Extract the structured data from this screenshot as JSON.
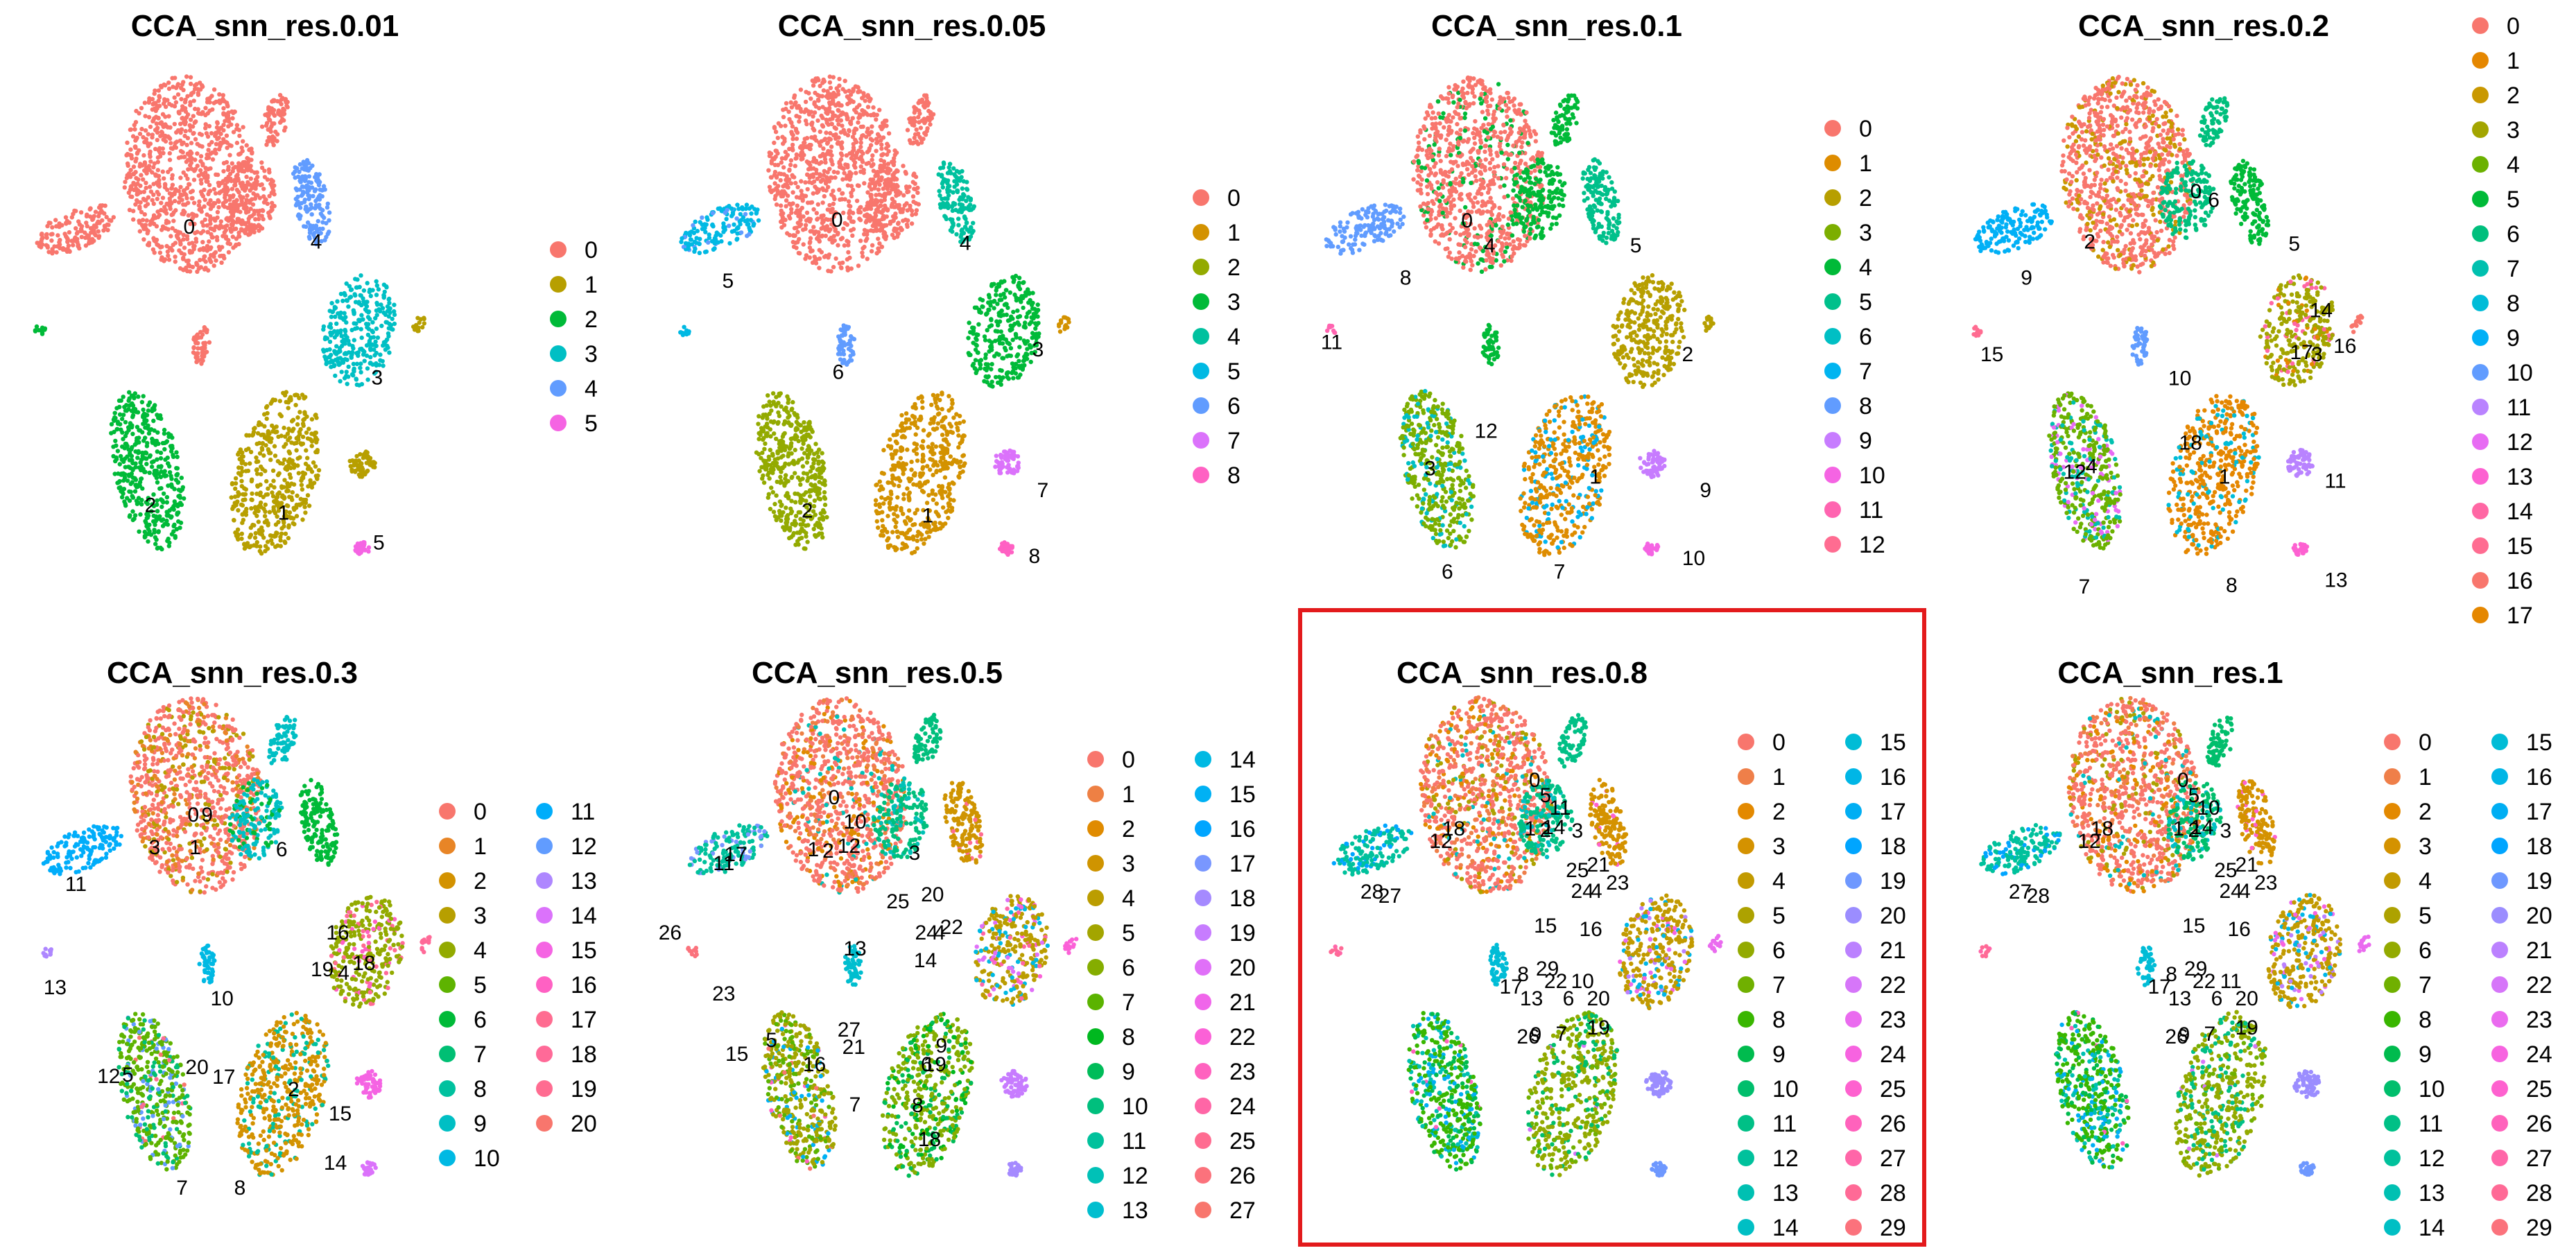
{
  "chart_data": [
    {
      "type": "scatter",
      "title": "CCA_snn_res.0.01",
      "legend_title": "",
      "legend_columns": 1,
      "clusters": [
        "0",
        "1",
        "2",
        "3",
        "4",
        "5"
      ],
      "colors": [
        "#F8766D",
        "#B79F00",
        "#00BA38",
        "#00BFC4",
        "#619CFF",
        "#F564E3"
      ]
    },
    {
      "type": "scatter",
      "title": "CCA_snn_res.0.05",
      "legend_title": "",
      "legend_columns": 1,
      "clusters": [
        "0",
        "1",
        "2",
        "3",
        "4",
        "5",
        "6",
        "7",
        "8"
      ],
      "colors": [
        "#F8766D",
        "#D39200",
        "#93AA00",
        "#00BA38",
        "#00C19F",
        "#00B9E3",
        "#619CFF",
        "#DB72FB",
        "#FF61C3"
      ]
    },
    {
      "type": "scatter",
      "title": "CCA_snn_res.0.1",
      "legend_title": "",
      "legend_columns": 1,
      "clusters": [
        "0",
        "1",
        "2",
        "3",
        "4",
        "5",
        "6",
        "7",
        "8",
        "9",
        "10",
        "11",
        "12"
      ],
      "colors": [
        "#F8766D",
        "#DE8C00",
        "#B79F00",
        "#7CAE00",
        "#00BA38",
        "#00C08B",
        "#00BFC4",
        "#00B4F0",
        "#619CFF",
        "#C77CFF",
        "#F564E3",
        "#FF64B0",
        "#FF6C91"
      ]
    },
    {
      "type": "scatter",
      "title": "CCA_snn_res.0.2",
      "legend_title": "",
      "legend_columns": 1,
      "clusters": [
        "0",
        "1",
        "2",
        "3",
        "4",
        "5",
        "6",
        "7",
        "8",
        "9",
        "10",
        "11",
        "12",
        "13",
        "14",
        "15",
        "16",
        "17"
      ],
      "colors": [
        "#F8766D",
        "#E58700",
        "#C99800",
        "#A3A500",
        "#6BB100",
        "#00BA38",
        "#00BF7D",
        "#00C0AF",
        "#00BCD8",
        "#00B0F6",
        "#619CFF",
        "#B983FF",
        "#E76BF3",
        "#FD61D1",
        "#FF67A4",
        "#FF6C91",
        "#F8766D",
        "#E58700"
      ]
    },
    {
      "type": "scatter",
      "title": "CCA_snn_res.0.3",
      "legend_title": "",
      "legend_columns": 2,
      "clusters": [
        "0",
        "1",
        "2",
        "3",
        "4",
        "5",
        "6",
        "7",
        "8",
        "9",
        "10",
        "11",
        "12",
        "13",
        "14",
        "15",
        "16",
        "17",
        "18",
        "19",
        "20"
      ],
      "colors": [
        "#F8766D",
        "#E88526",
        "#D39200",
        "#B79F00",
        "#93AA00",
        "#5EB300",
        "#00BA38",
        "#00BF74",
        "#00C19F",
        "#00BFC4",
        "#00B9E3",
        "#00ADFA",
        "#619CFF",
        "#AE87FF",
        "#DB72FB",
        "#F564E3",
        "#FF61C3",
        "#FF6C91",
        "#FF6A98",
        "#FF6C91",
        "#F8766D"
      ]
    },
    {
      "type": "scatter",
      "title": "CCA_snn_res.0.5",
      "legend_title": "",
      "legend_columns": 2,
      "clusters": [
        "0",
        "1",
        "2",
        "3",
        "4",
        "5",
        "6",
        "7",
        "8",
        "9",
        "10",
        "11",
        "12",
        "13",
        "14",
        "15",
        "16",
        "17",
        "18",
        "19",
        "20",
        "21",
        "22",
        "23",
        "24",
        "25",
        "26",
        "27"
      ],
      "colors": [
        "#F8766D",
        "#EE8044",
        "#E08B00",
        "#CF9400",
        "#BB9D00",
        "#A3A500",
        "#85AD00",
        "#5BB300",
        "#00B81F",
        "#00BC59",
        "#00BF7D",
        "#00C19C",
        "#00C1B7",
        "#00BECF",
        "#00B9E3",
        "#00B1F4",
        "#00A5FF",
        "#7997FF",
        "#A58AFF",
        "#C77CFF",
        "#E070F8",
        "#F066EA",
        "#FB61D7",
        "#FF62BF",
        "#FF66A6",
        "#FF6C91",
        "#FB727C",
        "#F8766D"
      ]
    },
    {
      "type": "scatter",
      "title": "CCA_snn_res.0.8",
      "legend_title": "",
      "legend_columns": 2,
      "highlighted": true,
      "clusters": [
        "0",
        "1",
        "2",
        "3",
        "4",
        "5",
        "6",
        "7",
        "8",
        "9",
        "10",
        "11",
        "12",
        "13",
        "14",
        "15",
        "16",
        "17",
        "18",
        "19",
        "20",
        "21",
        "22",
        "23",
        "24",
        "25",
        "26",
        "27",
        "28",
        "29"
      ],
      "colors": [
        "#F8766D",
        "#EF7F49",
        "#E38900",
        "#D49200",
        "#C29A00",
        "#ADA200",
        "#93AA00",
        "#70B000",
        "#39B600",
        "#00BB4E",
        "#00BE6C",
        "#00C086",
        "#00C19C",
        "#00C0B2",
        "#00BFC4",
        "#00BCD6",
        "#00B6E6",
        "#00AEF3",
        "#00A5FF",
        "#6E98FF",
        "#9B8DFF",
        "#BB81FF",
        "#D676F9",
        "#EA6BEF",
        "#F763E0",
        "#FE61CF",
        "#FF62BC",
        "#FF66A8",
        "#FF6A96",
        "#FB727C"
      ]
    },
    {
      "type": "scatter",
      "title": "CCA_snn_res.1",
      "legend_title": "",
      "legend_columns": 2,
      "clusters": [
        "0",
        "1",
        "2",
        "3",
        "4",
        "5",
        "6",
        "7",
        "8",
        "9",
        "10",
        "11",
        "12",
        "13",
        "14",
        "15",
        "16",
        "17",
        "18",
        "19",
        "20",
        "21",
        "22",
        "23",
        "24",
        "25",
        "26",
        "27",
        "28",
        "29"
      ],
      "colors": [
        "#F8766D",
        "#EF7F49",
        "#E38900",
        "#D49200",
        "#C29A00",
        "#ADA200",
        "#93AA00",
        "#70B000",
        "#39B600",
        "#00BB4E",
        "#00BE6C",
        "#00C086",
        "#00C19C",
        "#00C0B2",
        "#00BFC4",
        "#00BCD6",
        "#00B6E6",
        "#00AEF3",
        "#00A5FF",
        "#6E98FF",
        "#9B8DFF",
        "#BB81FF",
        "#D676F9",
        "#EA6BEF",
        "#F763E0",
        "#FE61CF",
        "#FF62BC",
        "#FF66A8",
        "#FF6A96",
        "#FB727C"
      ]
    }
  ]
}
